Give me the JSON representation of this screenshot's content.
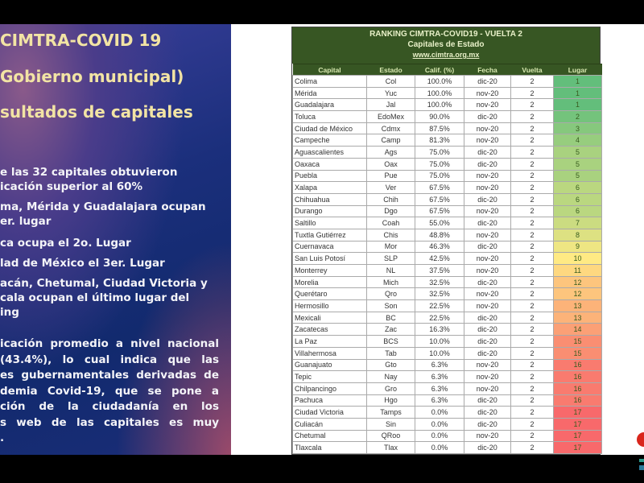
{
  "left": {
    "titles": [
      "CIMTRA-COVID 19",
      "Gobierno municipal)",
      "sultados de capitales"
    ],
    "bullets": [
      [
        "e las 32 capitales obtuvieron",
        "icación superior al 60%"
      ],
      [
        "ma, Mérida y Guadalajara ocupan",
        "er. lugar"
      ],
      [
        "ca ocupa el 2o. Lugar"
      ],
      [
        "lad de México el 3er. Lugar"
      ],
      [
        "acán, Chetumal, Ciudad Victoria y",
        "cala ocupan el último lugar del",
        "ing"
      ]
    ],
    "paragraph": [
      "icación promedio a nivel nacional",
      "(43.4%), lo cual indica que las",
      "es gubernamentales derivadas de",
      "demia Covid-19, que se pone a",
      "ción de la ciudadanía en los",
      "s web de las capitales es muy",
      "."
    ]
  },
  "table": {
    "title": "RANKING CIMTRA-COVID19 - VUELTA 2",
    "subtitle": "Capitales de Estado",
    "url": "www.cimtra.org.mx",
    "columns": [
      "Capital",
      "Estado",
      "Calif. (%)",
      "Fecha",
      "Vuelta",
      "Lugar"
    ],
    "color_scale": {
      "best": "#63be7b",
      "mid": "#ffeb84",
      "worst": "#f8696b"
    },
    "rows": [
      [
        "Colima",
        "Col",
        "100.0%",
        "dic-20",
        "2",
        "1"
      ],
      [
        "Mérida",
        "Yuc",
        "100.0%",
        "nov-20",
        "2",
        "1"
      ],
      [
        "Guadalajara",
        "Jal",
        "100.0%",
        "nov-20",
        "2",
        "1"
      ],
      [
        "Toluca",
        "EdoMex",
        "90.0%",
        "dic-20",
        "2",
        "2"
      ],
      [
        "Ciudad de México",
        "Cdmx",
        "87.5%",
        "nov-20",
        "2",
        "3"
      ],
      [
        "Campeche",
        "Camp",
        "81.3%",
        "nov-20",
        "2",
        "4"
      ],
      [
        "Aguascalientes",
        "Ags",
        "75.0%",
        "dic-20",
        "2",
        "5"
      ],
      [
        "Oaxaca",
        "Oax",
        "75.0%",
        "dic-20",
        "2",
        "5"
      ],
      [
        "Puebla",
        "Pue",
        "75.0%",
        "nov-20",
        "2",
        "5"
      ],
      [
        "Xalapa",
        "Ver",
        "67.5%",
        "nov-20",
        "2",
        "6"
      ],
      [
        "Chihuahua",
        "Chih",
        "67.5%",
        "dic-20",
        "2",
        "6"
      ],
      [
        "Durango",
        "Dgo",
        "67.5%",
        "nov-20",
        "2",
        "6"
      ],
      [
        "Saltillo",
        "Coah",
        "55.0%",
        "dic-20",
        "2",
        "7"
      ],
      [
        "Tuxtla Gutiérrez",
        "Chis",
        "48.8%",
        "nov-20",
        "2",
        "8"
      ],
      [
        "Cuernavaca",
        "Mor",
        "46.3%",
        "dic-20",
        "2",
        "9"
      ],
      [
        "San Luis Potosí",
        "SLP",
        "42.5%",
        "nov-20",
        "2",
        "10"
      ],
      [
        "Monterrey",
        "NL",
        "37.5%",
        "nov-20",
        "2",
        "11"
      ],
      [
        "Morelia",
        "Mich",
        "32.5%",
        "dic-20",
        "2",
        "12"
      ],
      [
        "Querétaro",
        "Qro",
        "32.5%",
        "nov-20",
        "2",
        "12"
      ],
      [
        "Hermosillo",
        "Son",
        "22.5%",
        "nov-20",
        "2",
        "13"
      ],
      [
        "Mexicali",
        "BC",
        "22.5%",
        "dic-20",
        "2",
        "13"
      ],
      [
        "Zacatecas",
        "Zac",
        "16.3%",
        "dic-20",
        "2",
        "14"
      ],
      [
        "La Paz",
        "BCS",
        "10.0%",
        "dic-20",
        "2",
        "15"
      ],
      [
        "Villahermosa",
        "Tab",
        "10.0%",
        "dic-20",
        "2",
        "15"
      ],
      [
        "Guanajuato",
        "Gto",
        "6.3%",
        "nov-20",
        "2",
        "16"
      ],
      [
        "Tepic",
        "Nay",
        "6.3%",
        "nov-20",
        "2",
        "16"
      ],
      [
        "Chilpancingo",
        "Gro",
        "6.3%",
        "nov-20",
        "2",
        "16"
      ],
      [
        "Pachuca",
        "Hgo",
        "6.3%",
        "dic-20",
        "2",
        "16"
      ],
      [
        "Ciudad Victoria",
        "Tamps",
        "0.0%",
        "dic-20",
        "2",
        "17"
      ],
      [
        "Culiacán",
        "Sin",
        "0.0%",
        "dic-20",
        "2",
        "17"
      ],
      [
        "Chetumal",
        "QRoo",
        "0.0%",
        "nov-20",
        "2",
        "17"
      ],
      [
        "Tlaxcala",
        "Tlax",
        "0.0%",
        "dic-20",
        "2",
        "17"
      ]
    ]
  }
}
